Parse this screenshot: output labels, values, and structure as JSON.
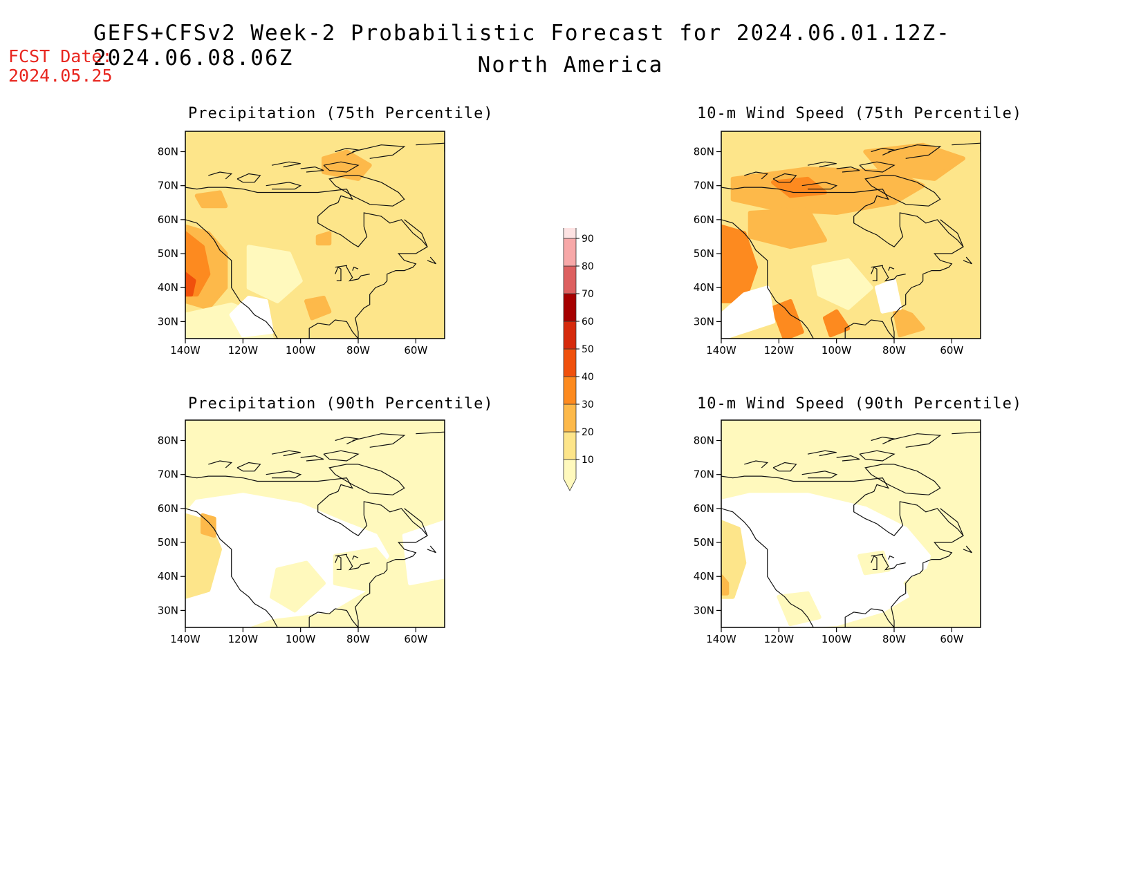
{
  "header": {
    "title": "GEFS+CFSv2 Week-2 Probabilistic Forecast for 2024.06.01.12Z-2024.06.08.06Z",
    "subtitle": "North America",
    "fcst_label": "FCST Date:",
    "fcst_date": "2024.05.25"
  },
  "panels": [
    {
      "id": "precip-75",
      "title": "Precipitation (75th Percentile)"
    },
    {
      "id": "wind-75",
      "title": "10-m Wind Speed (75th Percentile)"
    },
    {
      "id": "precip-90",
      "title": "Precipitation (90th Percentile)"
    },
    {
      "id": "wind-90",
      "title": "10-m Wind Speed (90th Percentile)"
    }
  ],
  "axes": {
    "lat_labels": [
      "80N",
      "70N",
      "60N",
      "50N",
      "40N",
      "30N"
    ],
    "lon_labels": [
      "140W",
      "120W",
      "100W",
      "80W",
      "60W"
    ]
  },
  "colorbar": {
    "levels": [
      "10",
      "20",
      "30",
      "40",
      "50",
      "60",
      "70",
      "80",
      "90"
    ],
    "colors": [
      "#fff9bd",
      "#fde58a",
      "#fdb94a",
      "#fd8a1f",
      "#f0500c",
      "#d62a0c",
      "#a60000",
      "#dd6060",
      "#f7a8a8",
      "#fde3e3"
    ]
  },
  "colors": {
    "fcst_date": "#e8261f",
    "bg": "#ffffff"
  }
}
